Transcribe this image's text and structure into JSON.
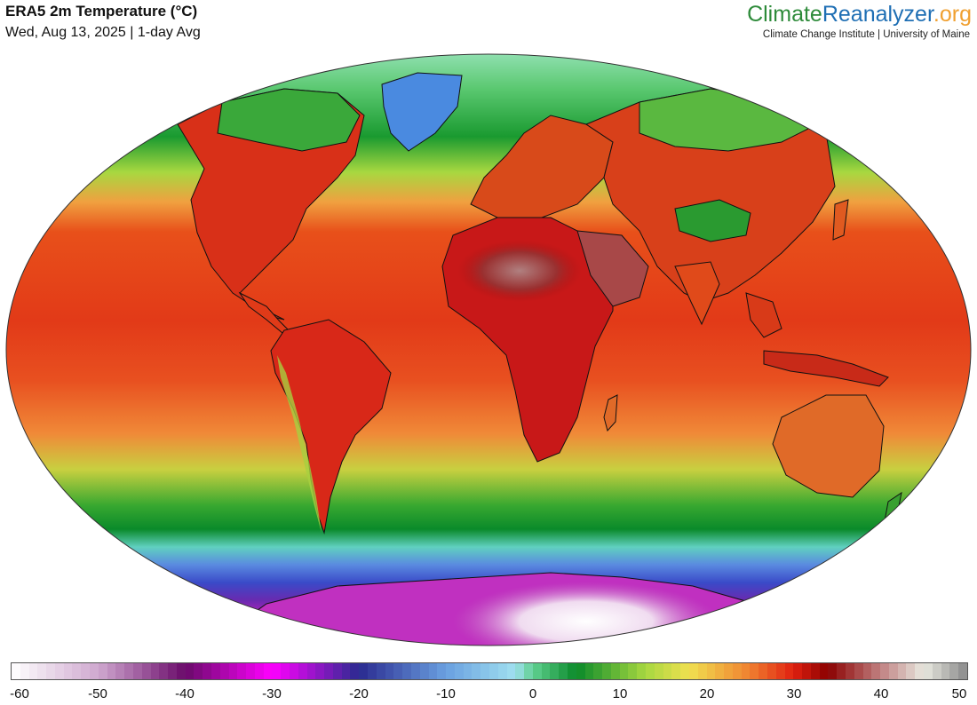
{
  "header": {
    "title": "ERA5 2m Temperature (°C)",
    "subtitle": "Wed, Aug 13, 2025 | 1-day Avg"
  },
  "brand": {
    "part1": "Climate",
    "part2": "Reanalyzer",
    "part3": ".org",
    "tagline": "Climate Change Institute | University of Maine",
    "colors": {
      "part1": "#2e8b3a",
      "part2": "#1f6fb4",
      "part3": "#f0a030"
    }
  },
  "colorbar": {
    "min": -60,
    "max": 50,
    "tick_labels": [
      "-60",
      "-50",
      "-40",
      "-30",
      "-20",
      "-10",
      "0",
      "10",
      "20",
      "30",
      "40",
      "50"
    ],
    "stops": [
      {
        "t": -60,
        "c": "#ffffff"
      },
      {
        "t": -50,
        "c": "#cfa8cf"
      },
      {
        "t": -40,
        "c": "#6a0a6a"
      },
      {
        "t": -30,
        "c": "#ff00ff"
      },
      {
        "t": -20,
        "c": "#2a2a90"
      },
      {
        "t": -10,
        "c": "#6aa0e0"
      },
      {
        "t": -2,
        "c": "#a0e0f0"
      },
      {
        "t": 0,
        "c": "#60d090"
      },
      {
        "t": 5,
        "c": "#0a8a2a"
      },
      {
        "t": 13,
        "c": "#a8d840"
      },
      {
        "t": 18,
        "c": "#f0e050"
      },
      {
        "t": 25,
        "c": "#f08030"
      },
      {
        "t": 30,
        "c": "#e02010"
      },
      {
        "t": 34,
        "c": "#8a0000"
      },
      {
        "t": 40,
        "c": "#c08080"
      },
      {
        "t": 45,
        "c": "#e8e8e0"
      },
      {
        "t": 50,
        "c": "#8a8a8a"
      }
    ]
  },
  "map": {
    "projection": "Winkel-tripel style world map",
    "colors": {
      "ocean_tropics": "#e8401a",
      "ocean_subtropics": "#f07a30",
      "ocean_midlat": "#a8d840",
      "ocean_cold": "#0a8a2a",
      "southern_ocean": "#3a55c8",
      "antarctica": "#b020b0",
      "antarctica_core": "#f4f0f4",
      "arctic": "#90e0b0",
      "greenland": "#4a8ae0",
      "sahara": "#a06060",
      "land_hot": "#c01010"
    }
  }
}
